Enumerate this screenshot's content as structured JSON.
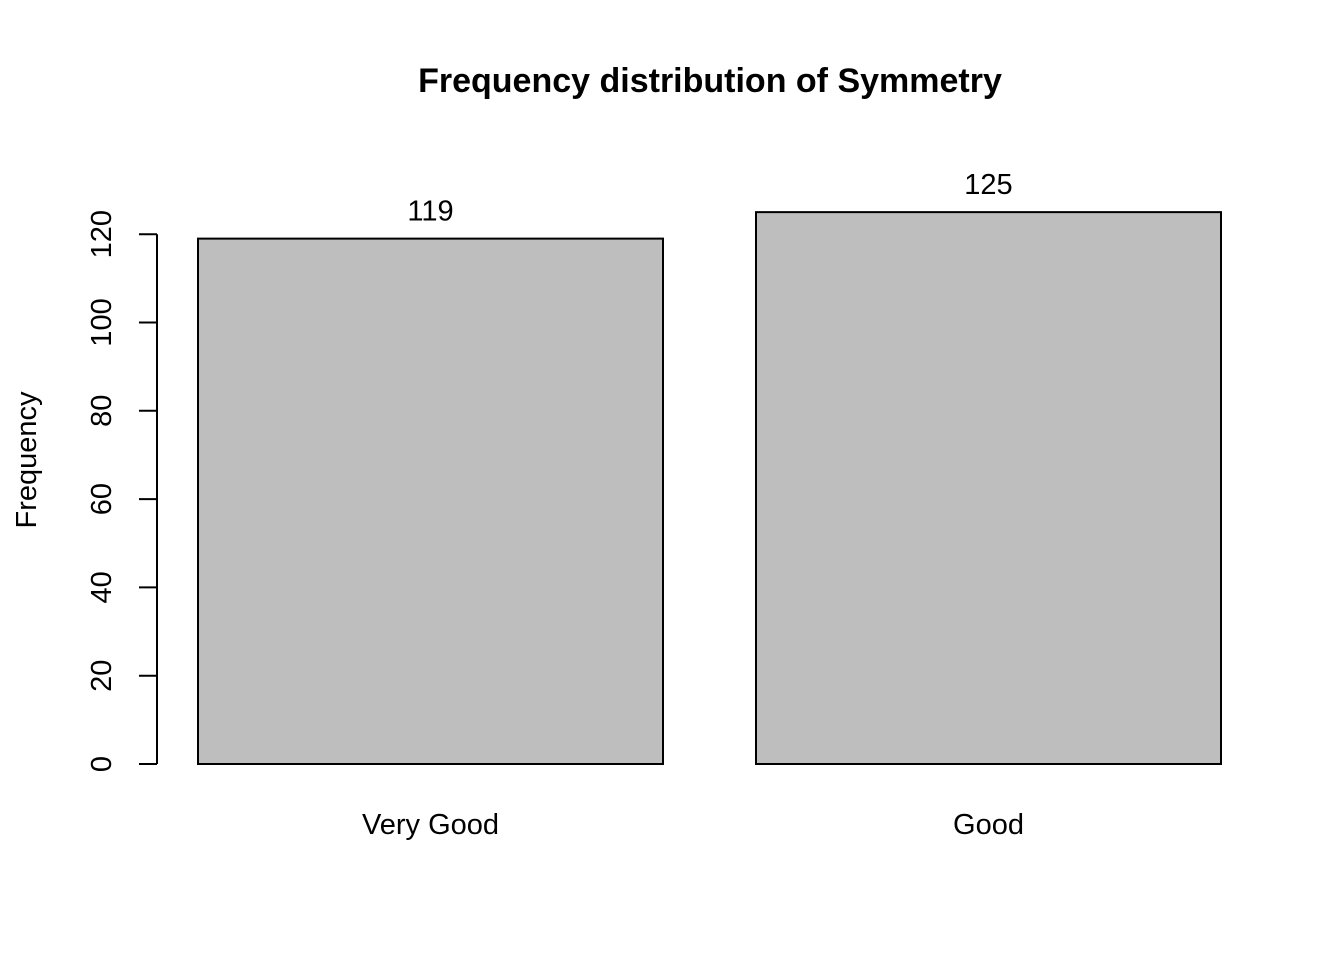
{
  "chart_data": {
    "type": "bar",
    "title": "Frequency distribution of Symmetry",
    "xlabel": "",
    "ylabel": "Frequency",
    "categories": [
      "Very Good",
      "Good"
    ],
    "values": [
      119,
      125
    ],
    "data_labels": [
      "119",
      "125"
    ],
    "y_ticks": [
      0,
      20,
      40,
      60,
      80,
      100,
      120
    ],
    "ylim": [
      0,
      125
    ],
    "grid": false,
    "legend": "none",
    "bar_fill": "#bebebe",
    "bar_stroke": "#000000"
  }
}
